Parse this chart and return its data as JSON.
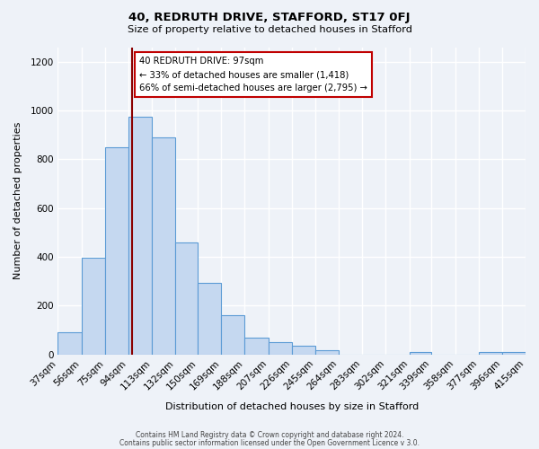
{
  "title": "40, REDRUTH DRIVE, STAFFORD, ST17 0FJ",
  "subtitle": "Size of property relative to detached houses in Stafford",
  "xlabel": "Distribution of detached houses by size in Stafford",
  "ylabel": "Number of detached properties",
  "bin_labels": [
    "37sqm",
    "56sqm",
    "75sqm",
    "94sqm",
    "113sqm",
    "132sqm",
    "150sqm",
    "169sqm",
    "188sqm",
    "207sqm",
    "226sqm",
    "245sqm",
    "264sqm",
    "283sqm",
    "302sqm",
    "321sqm",
    "339sqm",
    "358sqm",
    "377sqm",
    "396sqm",
    "415sqm"
  ],
  "bar_heights": [
    90,
    395,
    850,
    975,
    890,
    460,
    295,
    160,
    70,
    50,
    35,
    18,
    0,
    0,
    0,
    10,
    0,
    0,
    10,
    8
  ],
  "bin_edges": [
    37,
    56,
    75,
    94,
    113,
    132,
    150,
    169,
    188,
    207,
    226,
    245,
    264,
    283,
    302,
    321,
    339,
    358,
    377,
    396,
    415
  ],
  "bar_color": "#c5d8f0",
  "bar_edgecolor": "#5b9bd5",
  "vline_x": 97,
  "vline_color": "#8b0000",
  "annotation_line1": "40 REDRUTH DRIVE: 97sqm",
  "annotation_line2": "← 33% of detached houses are smaller (1,418)",
  "annotation_line3": "66% of semi-detached houses are larger (2,795) →",
  "annotation_box_color": "white",
  "annotation_box_edgecolor": "#c00000",
  "ylim": [
    0,
    1260
  ],
  "yticks": [
    0,
    200,
    400,
    600,
    800,
    1000,
    1200
  ],
  "footer1": "Contains HM Land Registry data © Crown copyright and database right 2024.",
  "footer2": "Contains public sector information licensed under the Open Government Licence v 3.0.",
  "background_color": "#eef2f8"
}
